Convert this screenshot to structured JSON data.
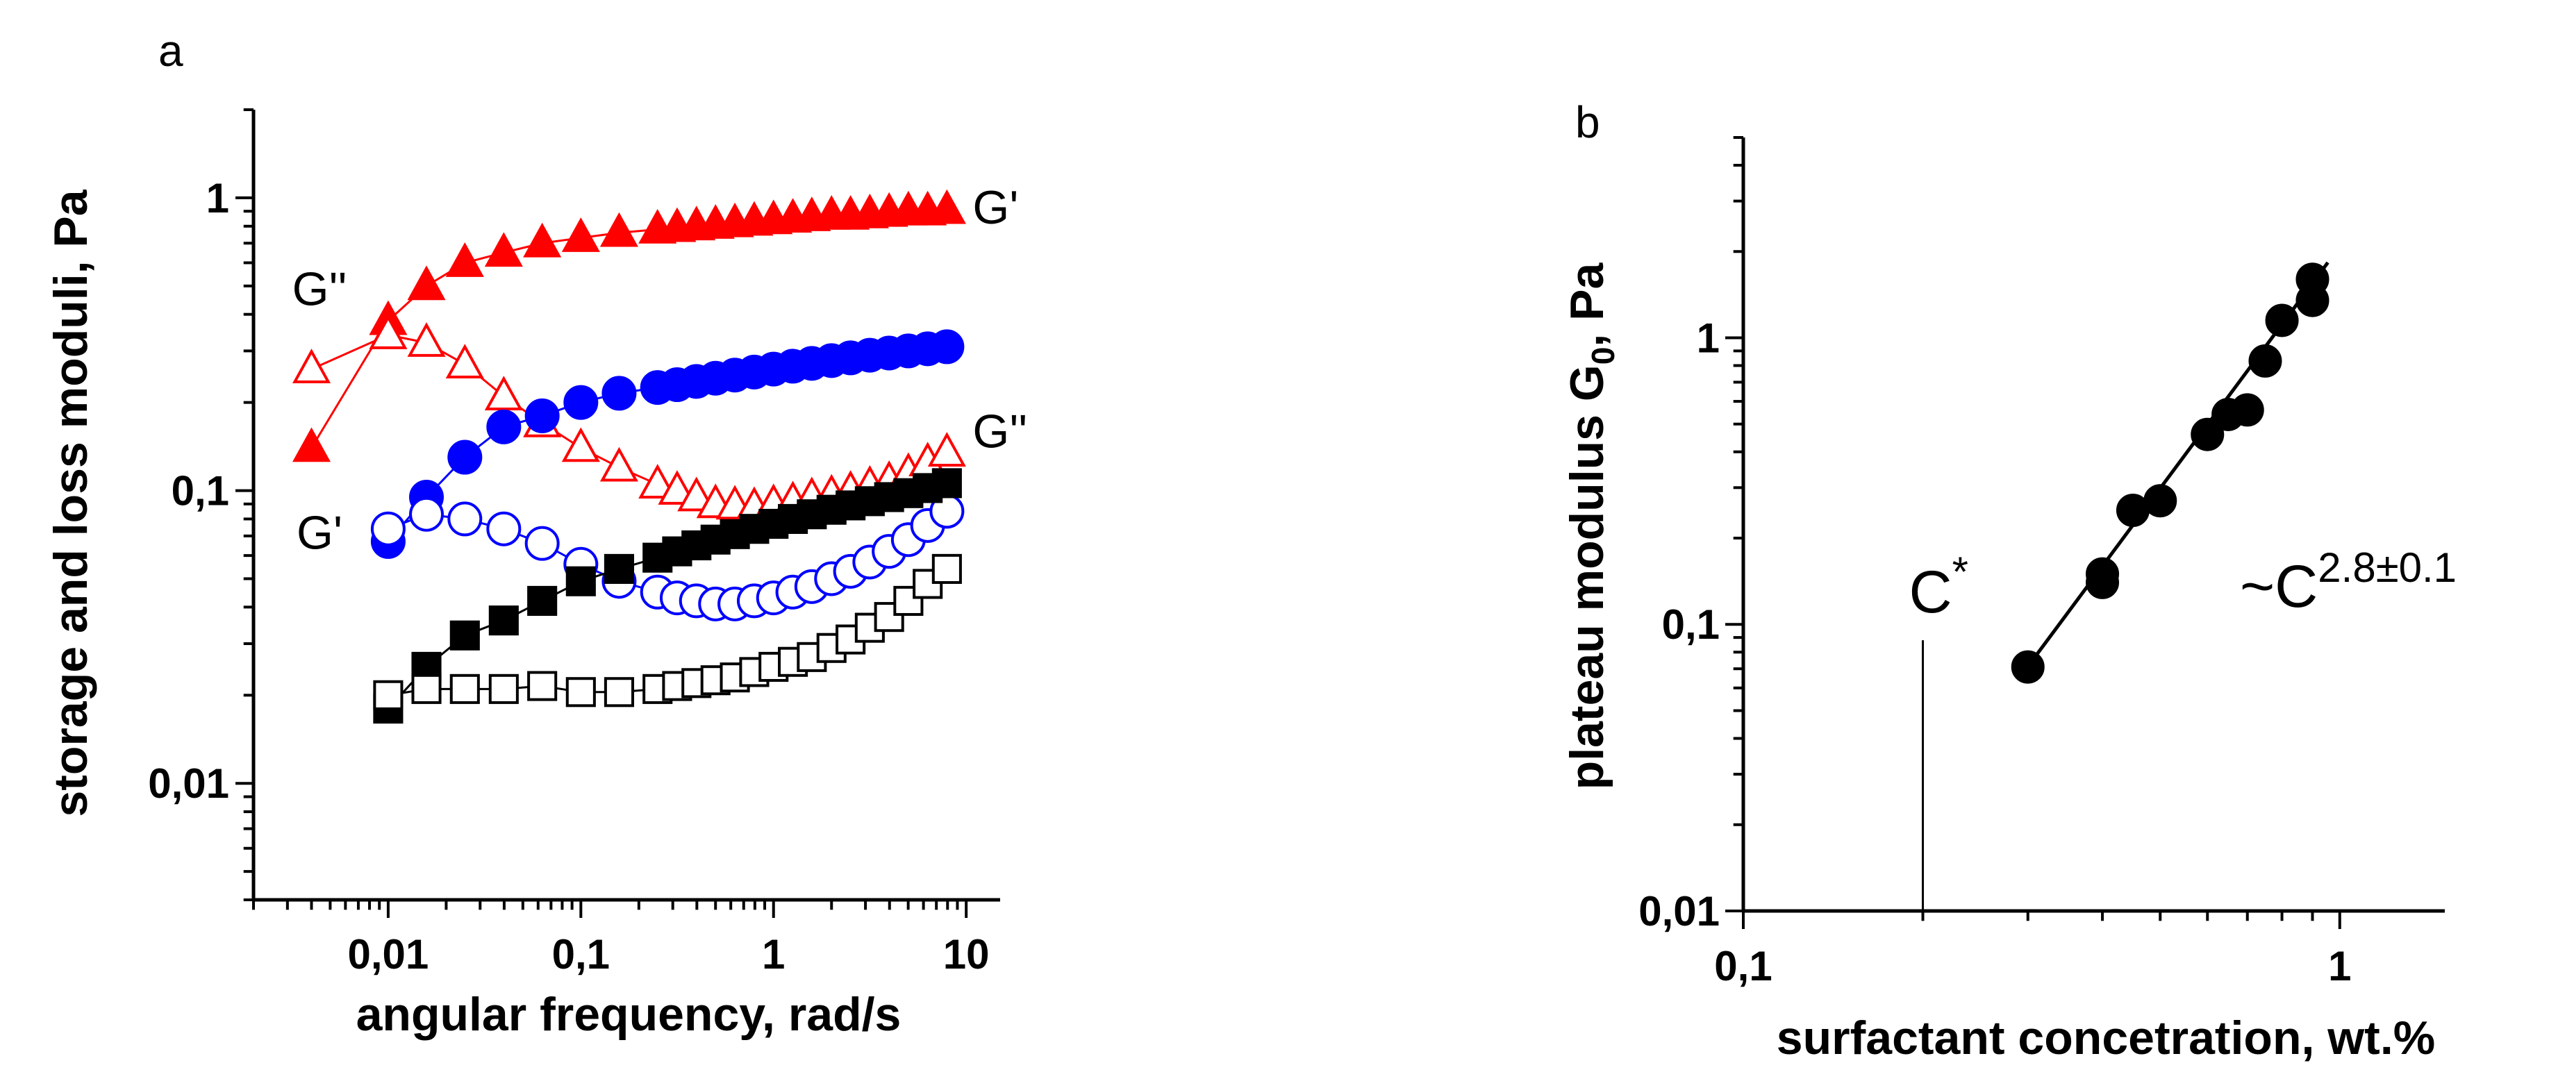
{
  "chart_data": [
    {
      "panel": "a",
      "type": "scatter",
      "xscale": "log",
      "yscale": "log",
      "xlabel": "angular frequency, rad/s",
      "ylabel": "storage and loss moduli, Pa",
      "xlim": [
        0.002,
        15
      ],
      "ylim": [
        0.004,
        2
      ],
      "x_ticks": [
        {
          "value": 0.01,
          "label": "0,01"
        },
        {
          "value": 0.1,
          "label": "0,1"
        },
        {
          "value": 1,
          "label": "1"
        },
        {
          "value": 10,
          "label": "10"
        }
      ],
      "y_ticks": [
        {
          "value": 0.01,
          "label": "0,01"
        },
        {
          "value": 0.1,
          "label": "0,1"
        },
        {
          "value": 1,
          "label": "1"
        }
      ],
      "annotations": [
        {
          "text": "G'",
          "x": 10.8,
          "y": 0.93,
          "anchor": "start"
        },
        {
          "text": "G''",
          "x": 0.0044,
          "y": 0.49,
          "anchor": "middle"
        },
        {
          "text": "G'",
          "x": 0.0044,
          "y": 0.072,
          "anchor": "middle"
        },
        {
          "text": "G''",
          "x": 10.8,
          "y": 0.16,
          "anchor": "start"
        }
      ],
      "series": [
        {
          "name": "G' red",
          "marker": "triangle",
          "filled": true,
          "color": "#ff0000",
          "connected": true,
          "x": [
            0.004,
            0.01,
            0.0158,
            0.025,
            0.0398,
            0.063,
            0.1,
            0.158,
            0.25,
            0.316,
            0.398,
            0.5,
            0.63,
            0.794,
            1,
            1.26,
            1.58,
            2,
            2.51,
            3.16,
            3.98,
            5.01,
            6.31,
            7.94
          ],
          "y": [
            0.14,
            0.38,
            0.5,
            0.6,
            0.65,
            0.7,
            0.73,
            0.76,
            0.78,
            0.79,
            0.8,
            0.81,
            0.82,
            0.83,
            0.84,
            0.85,
            0.86,
            0.87,
            0.87,
            0.88,
            0.89,
            0.9,
            0.9,
            0.91
          ]
        },
        {
          "name": "G'' red",
          "marker": "triangle",
          "filled": false,
          "color": "#ff0000",
          "connected": true,
          "x": [
            0.004,
            0.01,
            0.0158,
            0.025,
            0.0398,
            0.063,
            0.1,
            0.158,
            0.25,
            0.316,
            0.398,
            0.5,
            0.63,
            0.794,
            1,
            1.26,
            1.58,
            2,
            2.51,
            3.16,
            3.98,
            5.01,
            6.31,
            7.94
          ],
          "y": [
            0.26,
            0.34,
            0.32,
            0.27,
            0.21,
            0.17,
            0.14,
            0.12,
            0.105,
            0.1,
            0.095,
            0.09,
            0.089,
            0.088,
            0.09,
            0.092,
            0.095,
            0.097,
            0.1,
            0.104,
            0.108,
            0.115,
            0.125,
            0.135
          ]
        },
        {
          "name": "G' blue",
          "marker": "circle",
          "filled": true,
          "color": "#0000ff",
          "connected": true,
          "x": [
            0.01,
            0.0158,
            0.025,
            0.0398,
            0.063,
            0.1,
            0.158,
            0.25,
            0.316,
            0.398,
            0.5,
            0.63,
            0.794,
            1,
            1.26,
            1.58,
            2,
            2.51,
            3.16,
            3.98,
            5.01,
            6.31,
            7.94
          ],
          "y": [
            0.067,
            0.095,
            0.13,
            0.165,
            0.18,
            0.2,
            0.215,
            0.225,
            0.23,
            0.236,
            0.242,
            0.248,
            0.254,
            0.26,
            0.266,
            0.272,
            0.278,
            0.284,
            0.29,
            0.295,
            0.3,
            0.305,
            0.31
          ]
        },
        {
          "name": "G'' blue",
          "marker": "circle",
          "filled": false,
          "color": "#0000ff",
          "connected": true,
          "x": [
            0.01,
            0.0158,
            0.025,
            0.0398,
            0.063,
            0.1,
            0.158,
            0.25,
            0.316,
            0.398,
            0.5,
            0.63,
            0.794,
            1,
            1.26,
            1.58,
            2,
            2.51,
            3.16,
            3.98,
            5.01,
            6.31,
            7.94
          ],
          "y": [
            0.074,
            0.083,
            0.08,
            0.074,
            0.066,
            0.056,
            0.049,
            0.045,
            0.043,
            0.042,
            0.041,
            0.041,
            0.042,
            0.043,
            0.045,
            0.047,
            0.05,
            0.053,
            0.057,
            0.062,
            0.068,
            0.076,
            0.085
          ]
        },
        {
          "name": "G' black",
          "marker": "square",
          "filled": true,
          "color": "#000000",
          "connected": true,
          "x": [
            0.01,
            0.0158,
            0.025,
            0.0398,
            0.063,
            0.1,
            0.158,
            0.25,
            0.316,
            0.398,
            0.5,
            0.63,
            0.794,
            1,
            1.26,
            1.58,
            2,
            2.51,
            3.16,
            3.98,
            5.01,
            6.31,
            7.94
          ],
          "y": [
            0.018,
            0.025,
            0.032,
            0.036,
            0.042,
            0.049,
            0.054,
            0.059,
            0.062,
            0.065,
            0.068,
            0.071,
            0.074,
            0.077,
            0.08,
            0.083,
            0.086,
            0.089,
            0.092,
            0.095,
            0.098,
            0.102,
            0.106
          ]
        },
        {
          "name": "G'' black",
          "marker": "square",
          "filled": false,
          "color": "#000000",
          "connected": true,
          "x": [
            0.01,
            0.0158,
            0.025,
            0.0398,
            0.063,
            0.1,
            0.158,
            0.25,
            0.316,
            0.398,
            0.5,
            0.63,
            0.794,
            1,
            1.26,
            1.58,
            2,
            2.51,
            3.16,
            3.98,
            5.01,
            6.31,
            7.94
          ],
          "y": [
            0.02,
            0.021,
            0.021,
            0.021,
            0.0215,
            0.0205,
            0.0205,
            0.021,
            0.0215,
            0.022,
            0.0225,
            0.023,
            0.024,
            0.025,
            0.026,
            0.027,
            0.029,
            0.031,
            0.034,
            0.037,
            0.042,
            0.048,
            0.054
          ]
        }
      ]
    },
    {
      "panel": "b",
      "type": "scatter",
      "xscale": "log",
      "yscale": "log",
      "xlabel": "surfactant concetration, wt.%",
      "ylabel_main": "plateau modulus G",
      "ylabel_sub": "0",
      "ylabel_tail": ", Pa",
      "xlim": [
        0.1,
        1.5
      ],
      "ylim": [
        0.01,
        5
      ],
      "x_ticks": [
        {
          "value": 0.1,
          "label": "0,1"
        },
        {
          "value": 1,
          "label": "1"
        }
      ],
      "y_ticks": [
        {
          "value": 0.01,
          "label": "0,01"
        },
        {
          "value": 0.1,
          "label": "0,1"
        },
        {
          "value": 1,
          "label": "1"
        }
      ],
      "marker": "circle",
      "color": "#000000",
      "points": {
        "x": [
          0.3,
          0.4,
          0.4,
          0.45,
          0.5,
          0.6,
          0.65,
          0.7,
          0.75,
          0.8,
          0.9,
          0.9
        ],
        "y": [
          0.071,
          0.14,
          0.15,
          0.25,
          0.27,
          0.46,
          0.54,
          0.56,
          0.83,
          1.15,
          1.35,
          1.6
        ]
      },
      "fit": {
        "x": [
          0.295,
          0.955
        ],
        "y": [
          0.068,
          1.83
        ]
      },
      "fit_label": {
        "base": "~C",
        "exponent": "2.8±0.1",
        "x": 0.68,
        "y": 0.115
      },
      "critical_line": {
        "x": 0.2,
        "y_top": 0.088,
        "label": "C",
        "label_sup": "*"
      }
    }
  ]
}
